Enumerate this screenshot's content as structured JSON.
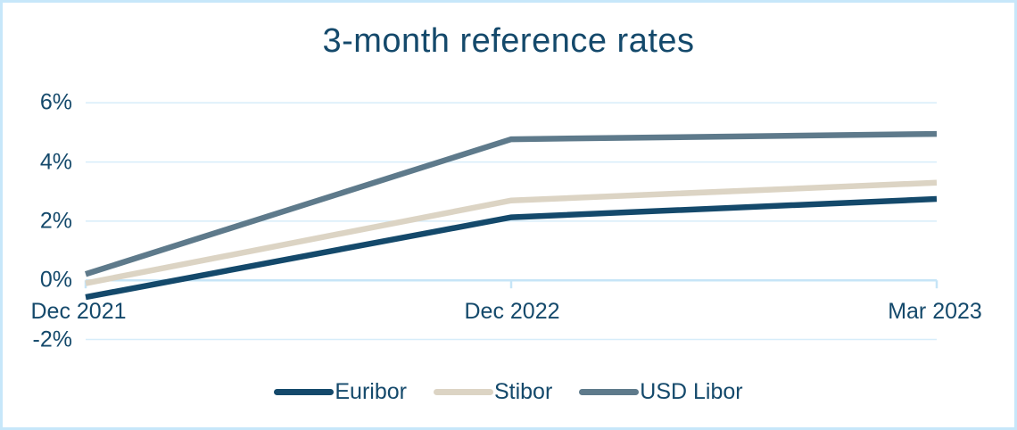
{
  "page": {
    "background": "#ffffff",
    "frame_border_color": "#c7e7fa"
  },
  "chart_data": {
    "type": "line",
    "title": "3-month reference rates",
    "categories": [
      "Dec 2021",
      "Dec 2022",
      "Mar 2023"
    ],
    "series": [
      {
        "name": "Euribor",
        "color": "#14496b",
        "values": [
          -0.57,
          2.13,
          2.75
        ]
      },
      {
        "name": "Stibor",
        "color": "#dcd4c4",
        "values": [
          -0.1,
          2.7,
          3.3
        ]
      },
      {
        "name": "USD Libor",
        "color": "#5e7a8b",
        "values": [
          0.21,
          4.77,
          4.95
        ]
      }
    ],
    "y_ticks": [
      {
        "label": "6%",
        "value": 6
      },
      {
        "label": "4%",
        "value": 4
      },
      {
        "label": "2%",
        "value": 2
      },
      {
        "label": "0%",
        "value": 0
      },
      {
        "label": "-2%",
        "value": -2
      }
    ],
    "ylim": [
      -2,
      6
    ],
    "xlabel": "",
    "ylabel": "",
    "grid": true,
    "legend_position": "bottom",
    "text_color": "#14496b",
    "grid_color": "#d7edfa",
    "axis_color": "#c6e5f7"
  }
}
